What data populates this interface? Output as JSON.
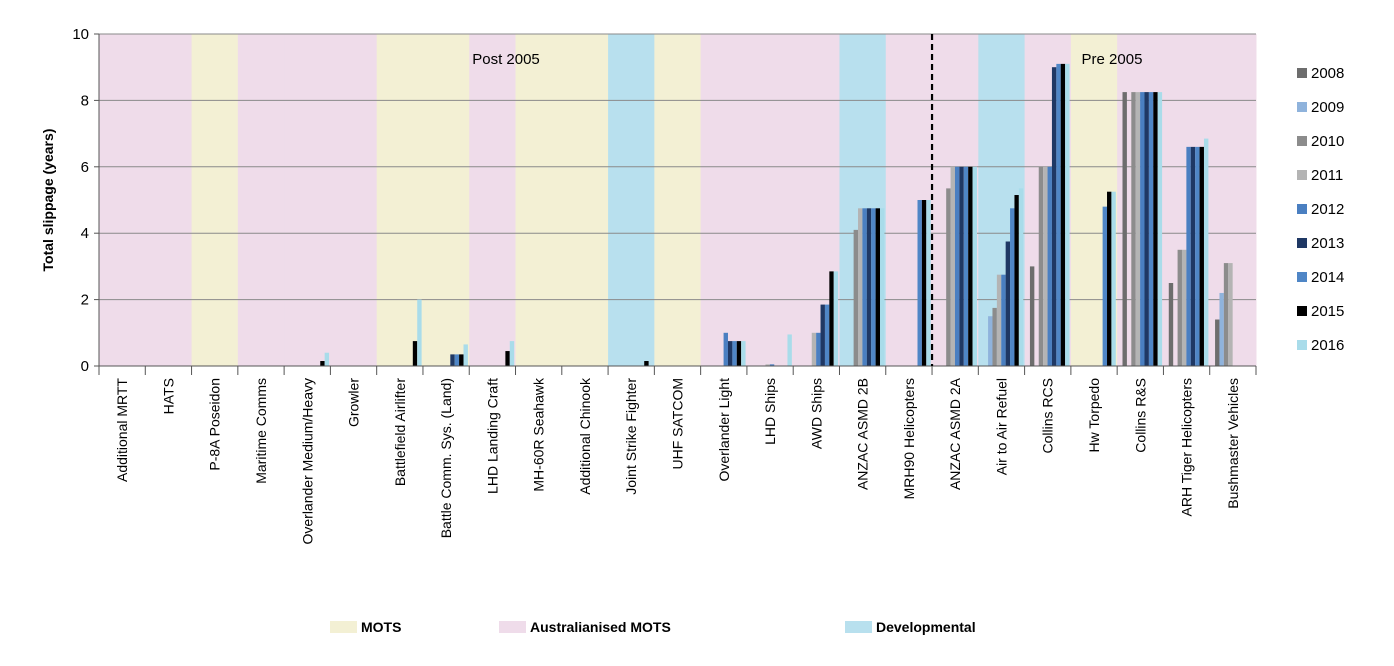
{
  "chart_data": {
    "type": "bar",
    "title": "",
    "ylabel": "Total slippage (years)",
    "xlabel": "",
    "ylim": [
      0,
      10
    ],
    "yticks": [
      0,
      2,
      4,
      6,
      8,
      10
    ],
    "grid": true,
    "legend_position": "right",
    "categories": [
      "Additional MRTT",
      "HATS",
      "P-8A Poseidon",
      "Maritime Comms",
      "Overlander Medium/Heavy",
      "Growler",
      "Battlefield Airlifter",
      "Battle Comm. Sys. (Land)",
      "LHD Landing Craft",
      "MH-60R Seahawk",
      "Additional Chinook",
      "Joint Strike Fighter",
      "UHF SATCOM",
      "Overlander Light",
      "LHD Ships",
      "AWD Ships",
      "ANZAC ASMD 2B",
      "MRH90 Helicopters",
      "ANZAC ASMD 2A",
      "Air to Air Refuel",
      "Collins RCS",
      "Hw Torpedo",
      "Collins R&S",
      "ARH Tiger Helicopters",
      "Bushmaster Vehicles"
    ],
    "category_types": [
      "A",
      "A",
      "M",
      "A",
      "A",
      "A",
      "M",
      "M",
      "A",
      "M",
      "M",
      "D",
      "M",
      "A",
      "A",
      "A",
      "D",
      "A",
      "A",
      "D",
      "A",
      "M",
      "A",
      "A",
      "A"
    ],
    "series": [
      {
        "name": "2008",
        "color": "#6d6d6d",
        "values": [
          null,
          null,
          null,
          null,
          null,
          null,
          null,
          null,
          null,
          null,
          null,
          null,
          null,
          null,
          null,
          null,
          null,
          null,
          null,
          null,
          3.0,
          null,
          8.25,
          2.5,
          1.4
        ]
      },
      {
        "name": "2009",
        "color": "#8fb3dc",
        "values": [
          null,
          null,
          null,
          null,
          null,
          null,
          null,
          null,
          null,
          null,
          null,
          null,
          null,
          null,
          null,
          null,
          null,
          null,
          null,
          1.5,
          null,
          null,
          null,
          null,
          2.2
        ]
      },
      {
        "name": "2010",
        "color": "#8c8c8c",
        "values": [
          null,
          null,
          null,
          null,
          null,
          null,
          null,
          null,
          null,
          null,
          null,
          null,
          null,
          null,
          null,
          null,
          4.1,
          null,
          5.35,
          1.75,
          6.0,
          null,
          8.25,
          3.5,
          3.1
        ]
      },
      {
        "name": "2011",
        "color": "#b4b4b4",
        "values": [
          null,
          null,
          null,
          null,
          null,
          null,
          null,
          null,
          null,
          null,
          null,
          null,
          null,
          null,
          0.05,
          1.0,
          4.75,
          null,
          6.0,
          2.75,
          6.0,
          null,
          8.25,
          3.5,
          3.1
        ]
      },
      {
        "name": "2012",
        "color": "#4a7fc1",
        "values": [
          null,
          null,
          null,
          null,
          null,
          null,
          null,
          null,
          null,
          null,
          null,
          null,
          null,
          1.0,
          0.05,
          1.0,
          4.75,
          null,
          6.0,
          2.75,
          6.0,
          null,
          8.25,
          6.6,
          null
        ]
      },
      {
        "name": "2013",
        "color": "#1f3864",
        "values": [
          null,
          null,
          null,
          null,
          null,
          null,
          null,
          0.35,
          null,
          null,
          null,
          null,
          null,
          0.75,
          null,
          1.85,
          4.75,
          null,
          6.0,
          3.75,
          9.0,
          null,
          8.25,
          6.6,
          null
        ]
      },
      {
        "name": "2014",
        "color": "#4f86c6",
        "values": [
          null,
          null,
          null,
          null,
          null,
          null,
          null,
          0.35,
          null,
          null,
          null,
          null,
          null,
          0.75,
          null,
          1.85,
          4.75,
          5.0,
          6.0,
          4.75,
          9.1,
          4.8,
          8.25,
          6.6,
          null
        ]
      },
      {
        "name": "2015",
        "color": "#000000",
        "values": [
          null,
          null,
          null,
          null,
          0.15,
          null,
          0.75,
          0.35,
          0.45,
          null,
          null,
          0.15,
          null,
          0.75,
          null,
          2.85,
          4.75,
          5.0,
          6.0,
          5.15,
          9.1,
          5.25,
          8.25,
          6.6,
          null
        ]
      },
      {
        "name": "2016",
        "color": "#a9dcea",
        "values": [
          null,
          null,
          null,
          null,
          0.4,
          null,
          2.0,
          0.65,
          0.75,
          null,
          null,
          null,
          null,
          0.75,
          0.95,
          2.85,
          4.75,
          5.0,
          6.0,
          5.35,
          9.1,
          5.25,
          8.25,
          6.85,
          null
        ]
      }
    ],
    "annotations": {
      "post_label": "Post 2005",
      "pre_label": "Pre 2005",
      "divider_after_category": "MRH90 Helicopters"
    },
    "background_legend": [
      {
        "key": "M",
        "label": "MOTS",
        "color": "#f3f0d4"
      },
      {
        "key": "A",
        "label": "Australianised  MOTS",
        "color": "#efdcea"
      },
      {
        "key": "D",
        "label": "Developmental",
        "color": "#b8e0ee"
      }
    ]
  }
}
